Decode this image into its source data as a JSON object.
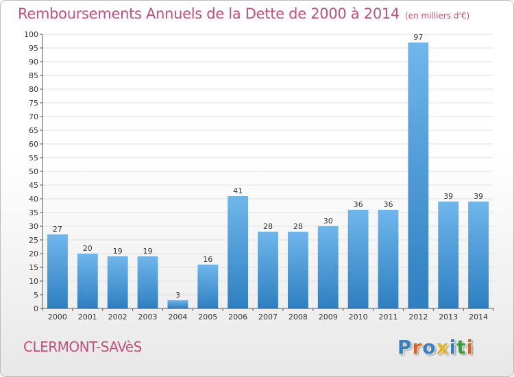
{
  "title": "Remboursements Annuels de la Dette de 2000 à 2014",
  "unit": "(en milliers d'€)",
  "place": "CLERMONT-SAVèS",
  "logo": {
    "text": "Proxiti",
    "colors": [
      "#3a7fc1",
      "#e0601c",
      "#3a7fc1",
      "#e4b21b",
      "#3a7fc1",
      "#3a9f3a",
      "#e0601c"
    ]
  },
  "chart_data": {
    "type": "bar",
    "categories": [
      "2000",
      "2001",
      "2002",
      "2003",
      "2004",
      "2005",
      "2006",
      "2007",
      "2008",
      "2009",
      "2010",
      "2011",
      "2012",
      "2013",
      "2014"
    ],
    "values": [
      27,
      20,
      19,
      19,
      3,
      16,
      41,
      28,
      28,
      30,
      36,
      36,
      97,
      39,
      39
    ],
    "ylim": [
      0,
      100
    ],
    "yticks": [
      0,
      5,
      10,
      15,
      20,
      25,
      30,
      35,
      40,
      45,
      50,
      55,
      60,
      65,
      70,
      75,
      80,
      85,
      90,
      95,
      100
    ],
    "grid": true,
    "bar_color_top": "#6fb6ec",
    "bar_color_bottom": "#2e7fc1"
  }
}
